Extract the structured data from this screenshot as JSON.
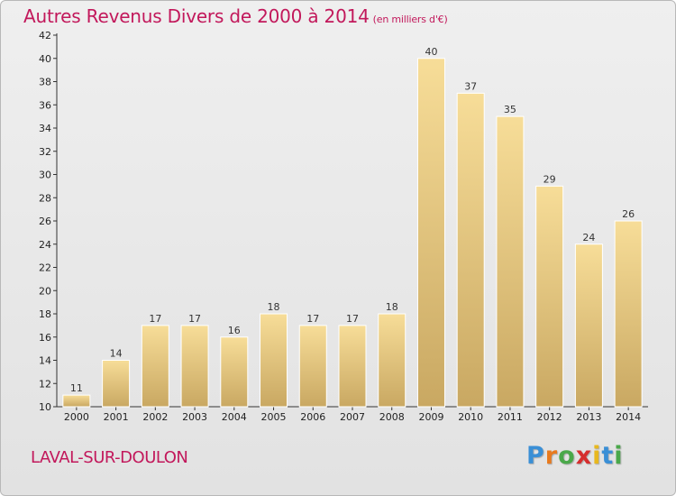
{
  "header": {
    "title": "Autres Revenus Divers de 2000 à 2014",
    "subtitle": "(en milliers d'€)"
  },
  "footer": {
    "city": "LAVAL-SUR-DOULON",
    "logo_letters": [
      "P",
      "r",
      "o",
      "x",
      "i",
      "t",
      "i"
    ],
    "logo_colors": [
      "#3a8fd6",
      "#e87a1e",
      "#4aa84a",
      "#d62e2e",
      "#e8b81e",
      "#3a8fd6",
      "#4aa84a"
    ]
  },
  "chart_data": {
    "type": "bar",
    "title": "Autres Revenus Divers de 2000 à 2014",
    "subtitle": "(en milliers d'€)",
    "xlabel": "",
    "ylabel": "",
    "categories": [
      "2000",
      "2001",
      "2002",
      "2003",
      "2004",
      "2005",
      "2006",
      "2007",
      "2008",
      "2009",
      "2010",
      "2011",
      "2012",
      "2013",
      "2014"
    ],
    "values": [
      11,
      14,
      17,
      17,
      16,
      18,
      17,
      17,
      18,
      40,
      37,
      35,
      29,
      24,
      26
    ],
    "ylim": [
      10,
      42
    ],
    "yticks": [
      10,
      12,
      14,
      16,
      18,
      20,
      22,
      24,
      26,
      28,
      30,
      32,
      34,
      36,
      38,
      40,
      42
    ],
    "grid": false,
    "bar_color": "#e6c67a",
    "bar_edge_color": "#ffffff"
  }
}
